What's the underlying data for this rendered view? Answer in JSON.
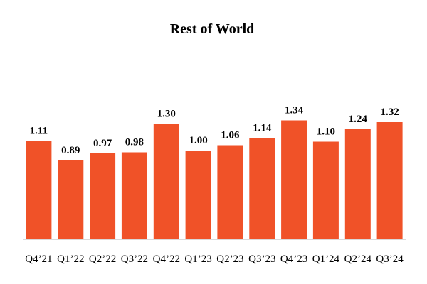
{
  "chart_data": {
    "type": "bar",
    "title": "Rest of World",
    "categories": [
      "Q4’21",
      "Q1’22",
      "Q2’22",
      "Q3’22",
      "Q4’22",
      "Q1’23",
      "Q2’23",
      "Q3’23",
      "Q4’23",
      "Q1’24",
      "Q2’24",
      "Q3’24"
    ],
    "values": [
      1.11,
      0.89,
      0.97,
      0.98,
      1.3,
      1.0,
      1.06,
      1.14,
      1.34,
      1.1,
      1.24,
      1.32
    ],
    "value_labels": [
      "1.11",
      "0.89",
      "0.97",
      "0.98",
      "1.30",
      "1.00",
      "1.06",
      "1.14",
      "1.34",
      "1.10",
      "1.24",
      "1.32"
    ],
    "xlabel": "",
    "ylabel": "",
    "ylim": [
      0,
      1.6
    ],
    "grid": false,
    "legend": "none",
    "bar_color": "#F05228"
  }
}
